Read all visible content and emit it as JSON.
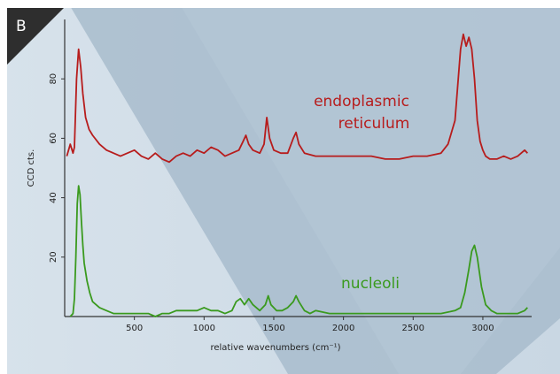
{
  "panel_label": "B",
  "colors": {
    "background_left": "#d7e2eb",
    "background_mid": "#9fb5c8",
    "background_right": "#c4d3e0",
    "panel_tab": "#2e2e2e",
    "er_series": "#b71c1c",
    "nucleoli_series": "#3a9a1e",
    "axis": "#333333"
  },
  "chart_data": {
    "type": "line",
    "xlabel": "relative wavenumbers (cm⁻¹)",
    "ylabel": "CCD cts.",
    "xlim": [
      0,
      3350
    ],
    "ylim": [
      0,
      100
    ],
    "x_ticks": [
      500,
      1000,
      1500,
      2000,
      2500,
      3000
    ],
    "x_tick_labels": [
      "500",
      "1000",
      "1500",
      "2000",
      "2500",
      "3000"
    ],
    "y_ticks": [
      20,
      40,
      60,
      80
    ],
    "y_tick_labels": [
      "20",
      "40",
      "60",
      "80"
    ],
    "series": [
      {
        "name": "endoplasmic reticulum",
        "color": "#b71c1c",
        "x": [
          15,
          40,
          60,
          70,
          85,
          100,
          115,
          130,
          150,
          175,
          200,
          250,
          300,
          350,
          400,
          450,
          500,
          550,
          600,
          650,
          700,
          750,
          800,
          850,
          900,
          950,
          1000,
          1050,
          1100,
          1150,
          1200,
          1250,
          1280,
          1300,
          1320,
          1350,
          1400,
          1430,
          1450,
          1470,
          1500,
          1550,
          1600,
          1640,
          1660,
          1680,
          1720,
          1800,
          1900,
          2000,
          2100,
          2200,
          2300,
          2400,
          2500,
          2600,
          2700,
          2750,
          2800,
          2840,
          2860,
          2880,
          2900,
          2920,
          2940,
          2960,
          2980,
          3000,
          3020,
          3050,
          3100,
          3150,
          3200,
          3250,
          3300,
          3320
        ],
        "y": [
          54,
          58,
          55,
          57,
          80,
          90,
          84,
          75,
          67,
          63,
          61,
          58,
          56,
          55,
          54,
          55,
          56,
          54,
          53,
          55,
          53,
          52,
          54,
          55,
          54,
          56,
          55,
          57,
          56,
          54,
          55,
          56,
          59,
          61,
          58,
          56,
          55,
          58,
          67,
          60,
          56,
          55,
          55,
          60,
          62,
          58,
          55,
          54,
          54,
          54,
          54,
          54,
          53,
          53,
          54,
          54,
          55,
          58,
          66,
          90,
          95,
          91,
          94,
          90,
          80,
          66,
          59,
          56,
          54,
          53,
          53,
          54,
          53,
          54,
          56,
          55
        ],
        "label_line1": "endoplasmic",
        "label_line2": "reticulum"
      },
      {
        "name": "nucleoli",
        "color": "#3a9a1e",
        "x": [
          40,
          60,
          70,
          80,
          90,
          100,
          110,
          120,
          130,
          140,
          160,
          180,
          200,
          250,
          300,
          350,
          400,
          450,
          500,
          550,
          600,
          650,
          700,
          750,
          800,
          850,
          900,
          950,
          1000,
          1050,
          1100,
          1150,
          1200,
          1230,
          1260,
          1290,
          1320,
          1350,
          1400,
          1440,
          1460,
          1480,
          1520,
          1560,
          1600,
          1640,
          1660,
          1680,
          1720,
          1760,
          1800,
          1900,
          2000,
          2100,
          2200,
          2300,
          2400,
          2500,
          2600,
          2700,
          2800,
          2840,
          2870,
          2900,
          2920,
          2940,
          2960,
          2990,
          3020,
          3060,
          3100,
          3150,
          3200,
          3250,
          3300,
          3320
        ],
        "y": [
          0,
          1,
          6,
          20,
          38,
          44,
          41,
          32,
          24,
          18,
          12,
          8,
          5,
          3,
          2,
          1,
          1,
          1,
          1,
          1,
          1,
          0,
          1,
          1,
          2,
          2,
          2,
          2,
          3,
          2,
          2,
          1,
          2,
          5,
          6,
          4,
          6,
          4,
          2,
          4,
          7,
          4,
          2,
          2,
          3,
          5,
          7,
          5,
          2,
          1,
          2,
          1,
          1,
          1,
          1,
          1,
          1,
          1,
          1,
          1,
          2,
          3,
          8,
          16,
          22,
          24,
          20,
          10,
          4,
          2,
          1,
          1,
          1,
          1,
          2,
          3
        ],
        "label": "nucleoli"
      }
    ]
  }
}
